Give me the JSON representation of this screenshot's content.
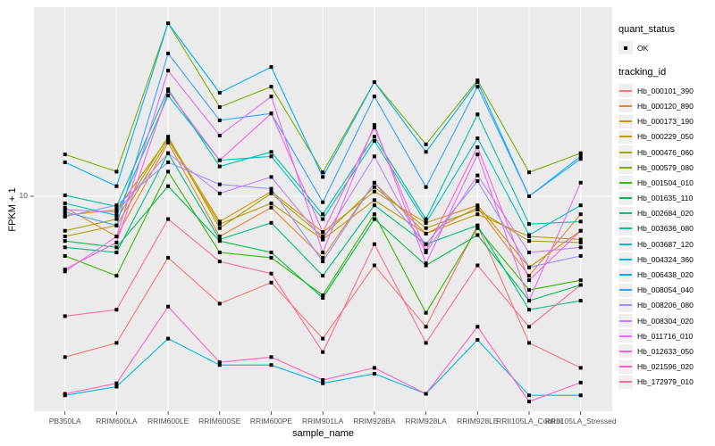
{
  "figure": {
    "background": "#FFFFFF",
    "panel_background": "#EBEBEB",
    "gridline_color": "#FFFFFF",
    "tick_color": "#333333",
    "point_color": "#000000",
    "axis_text_color": "#4D4D4D"
  },
  "chart_data": {
    "type": "line",
    "title": "",
    "xlabel": "sample_name",
    "ylabel": "FPKM + 1",
    "y_scale": "log10",
    "ylim": [
      1.1,
      70
    ],
    "y_ticks": [
      10
    ],
    "y_tick_label": "10",
    "grid": "major",
    "legend_position": "right",
    "marker": "point",
    "categories": [
      "PB350LA",
      "RRIM600LA",
      "RRIM600LE",
      "RRIM600SE",
      "RRIM600PE",
      "RRIM901LA",
      "RRIM928BA",
      "RRIM928LA",
      "RRIM928LE",
      "RRII105LA_Control",
      "RRII105LA_Stressed"
    ],
    "series": [
      {
        "name": "Hb_000101_390",
        "color": "#F8766D",
        "values": [
          1.9,
          2.2,
          5.3,
          3.3,
          4.1,
          2.3,
          4.9,
          2.6,
          7.4,
          2.2,
          1.7
        ]
      },
      {
        "name": "Hb_000120_890",
        "color": "#EA8331",
        "values": [
          8.9,
          6.6,
          17.4,
          6.6,
          8.9,
          5.3,
          11.5,
          6.8,
          8.9,
          4.4,
          8.3
        ]
      },
      {
        "name": "Hb_000173_190",
        "color": "#D89000",
        "values": [
          8.2,
          8.7,
          18.2,
          7.7,
          10.5,
          6.9,
          10.5,
          7.6,
          9.1,
          4.8,
          7.0
        ]
      },
      {
        "name": "Hb_000229_050",
        "color": "#C09B00",
        "values": [
          6.6,
          7.4,
          17.9,
          7.5,
          9.3,
          6.4,
          9.6,
          6.8,
          8.3,
          6.6,
          6.4
        ]
      },
      {
        "name": "Hb_000476_060",
        "color": "#A3A500",
        "values": [
          7.0,
          7.9,
          18.5,
          7.2,
          10.3,
          6.6,
          11.0,
          7.2,
          8.7,
          6.3,
          6.2
        ]
      },
      {
        "name": "Hb_000579_080",
        "color": "#7CAE00",
        "values": [
          15.4,
          12.9,
          59.7,
          25.1,
          31.0,
          12.8,
          32.5,
          17.1,
          33.1,
          12.8,
          15.6
        ]
      },
      {
        "name": "Hb_001504_010",
        "color": "#39B600",
        "values": [
          5.4,
          4.4,
          12.9,
          5.6,
          5.3,
          3.6,
          8.3,
          3.0,
          7.2,
          3.8,
          4.2
        ]
      },
      {
        "name": "Hb_001635_110",
        "color": "#00BB4E",
        "values": [
          6.3,
          5.9,
          11.1,
          6.3,
          5.6,
          3.5,
          7.9,
          4.9,
          6.7,
          3.4,
          4.0
        ]
      },
      {
        "name": "Hb_002684_020",
        "color": "#00BF7D",
        "values": [
          5.9,
          5.6,
          15.6,
          6.4,
          7.6,
          4.4,
          9.1,
          6.1,
          7.4,
          3.1,
          3.4
        ]
      },
      {
        "name": "Hb_003636_080",
        "color": "#00C1A3",
        "values": [
          10.1,
          9.0,
          30.2,
          13.6,
          15.8,
          8.3,
          18.5,
          7.9,
          23.3,
          7.5,
          7.7
        ]
      },
      {
        "name": "Hb_003687_120",
        "color": "#00BFC4",
        "values": [
          9.3,
          8.2,
          28.3,
          14.5,
          15.1,
          7.9,
          17.7,
          7.6,
          18.2,
          6.7,
          9.1
        ]
      },
      {
        "name": "Hb_004324_360",
        "color": "#00BAE0",
        "values": [
          1.28,
          1.4,
          2.3,
          1.75,
          1.75,
          1.45,
          1.6,
          1.3,
          2.27,
          1.28,
          1.28
        ]
      },
      {
        "name": "Hb_006438_020",
        "color": "#00B0F6",
        "values": [
          14.2,
          11.1,
          59.7,
          29.1,
          38.0,
          12.2,
          32.5,
          15.8,
          32.5,
          10.0,
          15.1
        ]
      },
      {
        "name": "Hb_008054_040",
        "color": "#35A2FF",
        "values": [
          8.5,
          7.4,
          43.7,
          21.9,
          23.5,
          9.4,
          28.0,
          11.0,
          31.0,
          10.0,
          14.7
        ]
      },
      {
        "name": "Hb_008206_080",
        "color": "#9590FF",
        "values": [
          8.1,
          9.1,
          14.2,
          11.3,
          10.8,
          5.1,
          11.5,
          6.1,
          11.7,
          4.8,
          5.4
        ]
      },
      {
        "name": "Hb_008304_020",
        "color": "#C77CFF",
        "values": [
          8.7,
          8.5,
          15.6,
          10.3,
          12.2,
          6.4,
          15.1,
          5.6,
          12.4,
          5.6,
          5.9
        ]
      },
      {
        "name": "Hb_011716_010",
        "color": "#E76BF3",
        "values": [
          4.6,
          6.6,
          36.6,
          18.7,
          28.0,
          5.6,
          20.9,
          5.0,
          15.4,
          3.4,
          11.5
        ]
      },
      {
        "name": "Hb_012633_050",
        "color": "#FA62DB",
        "values": [
          4.7,
          6.2,
          29.6,
          14.5,
          23.5,
          6.9,
          20.3,
          5.7,
          16.6,
          4.2,
          7.0
        ]
      },
      {
        "name": "Hb_021596_020",
        "color": "#FF62BC",
        "values": [
          1.3,
          1.45,
          3.2,
          1.8,
          1.9,
          1.5,
          1.7,
          1.3,
          2.6,
          1.2,
          1.46
        ]
      },
      {
        "name": "Hb_172979_010",
        "color": "#FF6A98",
        "values": [
          2.9,
          3.1,
          7.9,
          5.1,
          4.5,
          2.0,
          6.1,
          2.2,
          4.9,
          2.6,
          4.0
        ]
      }
    ],
    "legend": {
      "quant_status": {
        "title": "quant_status",
        "items": [
          {
            "label": "OK",
            "marker": "point"
          }
        ]
      },
      "tracking_id": {
        "title": "tracking_id"
      }
    }
  }
}
